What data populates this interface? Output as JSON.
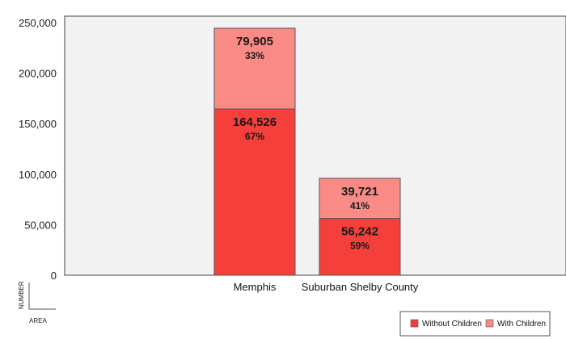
{
  "chart_data": {
    "type": "bar",
    "stacked": true,
    "categories": [
      "Memphis",
      "Suburban Shelby County"
    ],
    "series": [
      {
        "name": "Without Children",
        "values": [
          164526,
          56242
        ],
        "value_labels": [
          "164,526",
          "56,242"
        ],
        "percent_labels": [
          "67%",
          "59%"
        ],
        "color": "#f43f3a"
      },
      {
        "name": "With Children",
        "values": [
          79905,
          39721
        ],
        "value_labels": [
          "79,905",
          "39,721"
        ],
        "percent_labels": [
          "33%",
          "41%"
        ],
        "color": "#fa8a86"
      }
    ],
    "xlabel": "AREA",
    "ylabel": "NUMBER",
    "ylim": [
      0,
      250000
    ],
    "yticks": [
      0,
      50000,
      100000,
      150000,
      200000,
      250000
    ],
    "ytick_labels": [
      "0",
      "50,000",
      "100,000",
      "150,000",
      "200,000",
      "250,000"
    ],
    "plot_background": "#f2f2f2",
    "legend_position": "bottom-right",
    "grid": false
  }
}
